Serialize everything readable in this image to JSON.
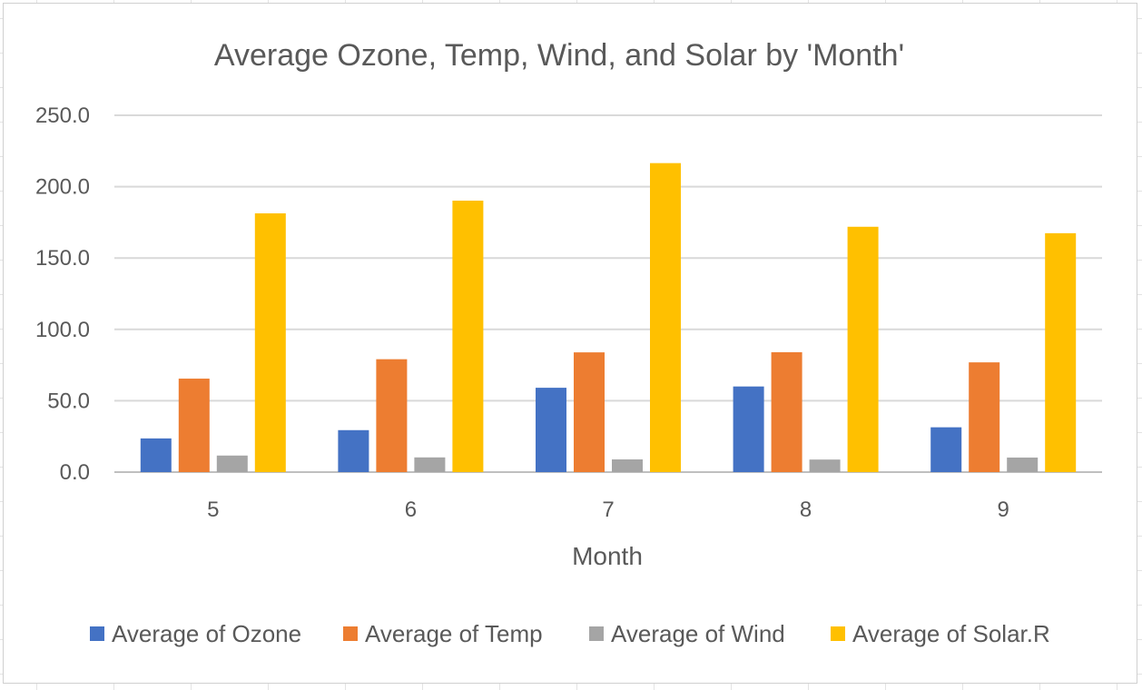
{
  "chart_data": {
    "type": "bar",
    "title": "Average Ozone, Temp, Wind, and Solar by 'Month'",
    "xlabel": "Month",
    "ylabel": "",
    "categories": [
      "5",
      "6",
      "7",
      "8",
      "9"
    ],
    "ylim": [
      0,
      250
    ],
    "yticks": [
      0,
      50,
      100,
      150,
      200,
      250
    ],
    "ytick_labels": [
      "0.0",
      "50.0",
      "100.0",
      "150.0",
      "200.0",
      "250.0"
    ],
    "grid": true,
    "legend_position": "bottom",
    "series": [
      {
        "name": "Average of Ozone",
        "color": "#4472C4",
        "values": [
          23.6,
          29.4,
          59.1,
          60.0,
          31.4
        ]
      },
      {
        "name": "Average of Temp",
        "color": "#ED7D31",
        "values": [
          65.5,
          79.1,
          83.9,
          84.0,
          76.9
        ]
      },
      {
        "name": "Average of Wind",
        "color": "#A5A5A5",
        "values": [
          11.6,
          10.3,
          8.9,
          8.8,
          10.2
        ]
      },
      {
        "name": "Average of Solar.R",
        "color": "#FFC000",
        "values": [
          181.3,
          190.2,
          216.5,
          171.9,
          167.4
        ]
      }
    ]
  }
}
